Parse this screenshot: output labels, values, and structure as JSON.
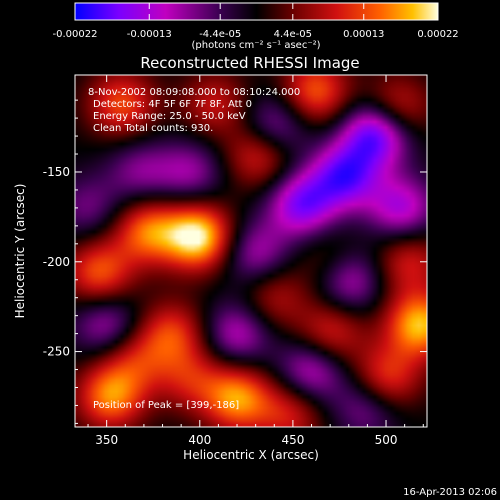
{
  "chart_data": {
    "type": "heatmap",
    "title": "Reconstructed RHESSI Image",
    "xlabel": "Heliocentric X (arcsec)",
    "ylabel": "Heliocentric Y (arcsec)",
    "xlim": [
      333,
      522
    ],
    "ylim": [
      -292,
      -96
    ],
    "x_ticks": [
      350,
      400,
      450,
      500
    ],
    "y_ticks": [
      -150,
      -200,
      -250
    ],
    "colorbar": {
      "min": -0.00022,
      "max": 0.00022,
      "tick_labels": [
        "-0.00022",
        "-0.00013",
        "-4.4e-05",
        "4.4e-05",
        "0.00013",
        "0.00022"
      ],
      "unit_label": "(photons cm⁻² s⁻¹ asec⁻²)",
      "palette": [
        "#0000ff",
        "#7a00ff",
        "#c000c0",
        "#000000",
        "#5a00a0",
        "#d01010",
        "#ff6000",
        "#ffc000",
        "#ffffe0"
      ]
    },
    "annotations": {
      "time": "8-Nov-2002 08:09:08.000 to 08:10:24.000",
      "detectors": "Detectors: 4F 5F 6F 7F 8F, Att 0",
      "energy": "Energy Range: 25.0 - 50.0 keV",
      "clean": "Clean     Total counts: 930.",
      "peak": "Position of Peak = [399,-186]"
    },
    "footer_date": "16-Apr-2013 02:06",
    "peak": {
      "x": 399,
      "y": -186
    },
    "blobs": [
      {
        "x": 399,
        "y": -186,
        "v": 0.00022
      },
      {
        "x": 372,
        "y": -183,
        "v": 0.00015
      },
      {
        "x": 346,
        "y": -206,
        "v": 0.00014
      },
      {
        "x": 352,
        "y": -275,
        "v": 0.00016
      },
      {
        "x": 385,
        "y": -240,
        "v": 0.00012
      },
      {
        "x": 420,
        "y": -276,
        "v": 0.00017
      },
      {
        "x": 448,
        "y": -285,
        "v": 0.0001
      },
      {
        "x": 470,
        "y": -240,
        "v": 0.00011
      },
      {
        "x": 500,
        "y": -265,
        "v": 0.00013
      },
      {
        "x": 518,
        "y": -235,
        "v": 0.00019
      },
      {
        "x": 512,
        "y": -200,
        "v": 0.0001
      },
      {
        "x": 505,
        "y": -115,
        "v": 0.00012
      },
      {
        "x": 462,
        "y": -105,
        "v": 0.00014
      },
      {
        "x": 432,
        "y": -140,
        "v": 0.00012
      },
      {
        "x": 408,
        "y": -112,
        "v": 9e-05
      },
      {
        "x": 358,
        "y": -112,
        "v": 0.00013
      },
      {
        "x": 440,
        "y": -220,
        "v": 8e-05
      },
      {
        "x": 365,
        "y": -255,
        "v": 9e-05
      },
      {
        "x": 470,
        "y": -200,
        "v": 6e-05
      },
      {
        "x": 395,
        "y": -265,
        "v": 9e-05
      },
      {
        "x": 455,
        "y": -168,
        "v": -0.00016
      },
      {
        "x": 478,
        "y": -152,
        "v": -0.00017
      },
      {
        "x": 495,
        "y": -128,
        "v": -0.0002
      },
      {
        "x": 440,
        "y": -125,
        "v": -0.00011
      },
      {
        "x": 508,
        "y": -170,
        "v": -0.00013
      },
      {
        "x": 480,
        "y": -210,
        "v": -0.00012
      },
      {
        "x": 430,
        "y": -195,
        "v": -0.0001
      },
      {
        "x": 350,
        "y": -235,
        "v": -0.0001
      },
      {
        "x": 368,
        "y": -150,
        "v": -8e-05
      },
      {
        "x": 420,
        "y": -240,
        "v": -0.00011
      },
      {
        "x": 460,
        "y": -260,
        "v": -0.00012
      },
      {
        "x": 340,
        "y": -170,
        "v": -7e-05
      },
      {
        "x": 395,
        "y": -150,
        "v": -9e-05
      },
      {
        "x": 490,
        "y": -280,
        "v": -9e-05
      }
    ]
  }
}
